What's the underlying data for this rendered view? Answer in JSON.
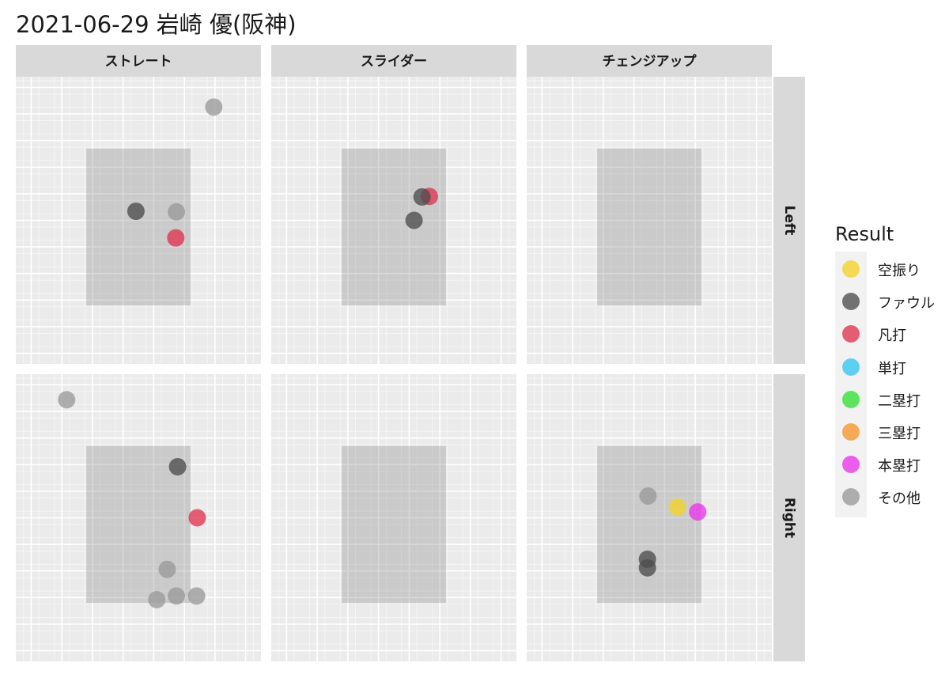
{
  "title": "2021-06-29 岩崎 優(阪神)",
  "chart_data": {
    "type": "scatter",
    "title": "2021-06-29 岩崎 優(阪神)",
    "columns": [
      "ストレート",
      "スライダー",
      "チェンジアップ"
    ],
    "rows": [
      "Left",
      "Right"
    ],
    "xlim": [
      -2.0,
      2.0
    ],
    "ylim": [
      -0.2,
      5.2
    ],
    "strike_zone": {
      "x": [
        -0.85,
        0.85
      ],
      "y": [
        0.9,
        3.85
      ]
    },
    "legend": {
      "title": "Result",
      "position": "right",
      "entries": [
        {
          "label": "空振り",
          "color": "#f5d328"
        },
        {
          "label": "ファウル",
          "color": "#4d4d4d"
        },
        {
          "label": "凡打",
          "color": "#e0334f"
        },
        {
          "label": "単打",
          "color": "#33c6f2"
        },
        {
          "label": "二塁打",
          "color": "#33e033"
        },
        {
          "label": "三塁打",
          "color": "#f7952a"
        },
        {
          "label": "本塁打",
          "color": "#ea33ea"
        },
        {
          "label": "その他",
          "color": "#9a9a9a"
        }
      ]
    },
    "points": [
      {
        "col": 0,
        "row": 0,
        "x": 1.23,
        "y": 4.63,
        "result": "その他"
      },
      {
        "col": 0,
        "row": 0,
        "x": -0.04,
        "y": 2.67,
        "result": "ファウル"
      },
      {
        "col": 0,
        "row": 0,
        "x": 0.62,
        "y": 2.66,
        "result": "その他"
      },
      {
        "col": 0,
        "row": 0,
        "x": 0.61,
        "y": 2.17,
        "result": "凡打"
      },
      {
        "col": 1,
        "row": 0,
        "x": 0.58,
        "y": 2.95,
        "result": "凡打"
      },
      {
        "col": 1,
        "row": 0,
        "x": 0.46,
        "y": 2.94,
        "result": "ファウル"
      },
      {
        "col": 1,
        "row": 0,
        "x": 0.33,
        "y": 2.5,
        "result": "ファウル"
      },
      {
        "col": 0,
        "row": 1,
        "x": -1.17,
        "y": 4.72,
        "result": "その他"
      },
      {
        "col": 0,
        "row": 1,
        "x": 0.64,
        "y": 3.46,
        "result": "ファウル"
      },
      {
        "col": 0,
        "row": 1,
        "x": 0.96,
        "y": 2.5,
        "result": "凡打"
      },
      {
        "col": 0,
        "row": 1,
        "x": 0.47,
        "y": 1.53,
        "result": "その他"
      },
      {
        "col": 0,
        "row": 1,
        "x": 0.3,
        "y": 0.96,
        "result": "その他"
      },
      {
        "col": 0,
        "row": 1,
        "x": 0.62,
        "y": 1.03,
        "result": "その他"
      },
      {
        "col": 0,
        "row": 1,
        "x": 0.95,
        "y": 1.03,
        "result": "その他"
      },
      {
        "col": 2,
        "row": 1,
        "x": -0.02,
        "y": 2.91,
        "result": "その他"
      },
      {
        "col": 2,
        "row": 1,
        "x": 0.46,
        "y": 2.7,
        "result": "空振り"
      },
      {
        "col": 2,
        "row": 1,
        "x": 0.79,
        "y": 2.61,
        "result": "本塁打"
      },
      {
        "col": 2,
        "row": 1,
        "x": -0.03,
        "y": 1.72,
        "result": "ファウル"
      },
      {
        "col": 2,
        "row": 1,
        "x": -0.03,
        "y": 1.56,
        "result": "ファウル"
      }
    ]
  }
}
